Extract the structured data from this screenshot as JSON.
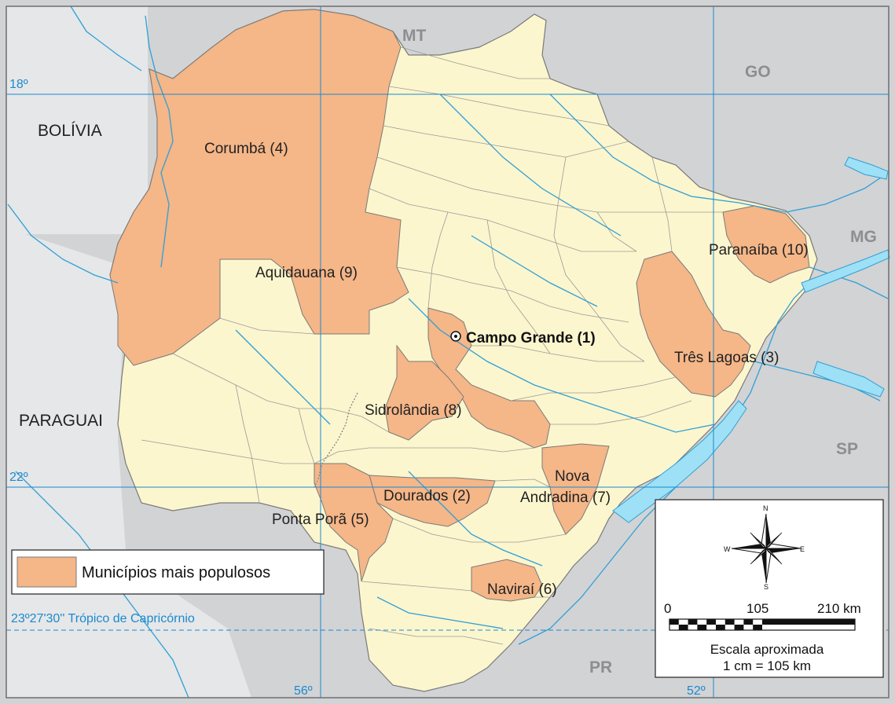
{
  "colors": {
    "neighbor": "#d2d3d5",
    "state": "#fcf6ce",
    "highlight": "#f5b688",
    "water": "#9ee0f5",
    "river": "#2f9fd6",
    "grid": "#1a8ad0",
    "border": "#7a7a7a",
    "neighbor_label": "#8d8e91"
  },
  "neighbors": {
    "mt": "MT",
    "go": "GO",
    "mg": "MG",
    "sp": "SP",
    "pr": "PR",
    "bolivia": "BOLÍVIA",
    "paraguai": "PARAGUAI"
  },
  "grid": {
    "lat_18": "18º",
    "lat_22": "22º",
    "lon_56": "56º",
    "lon_52": "52º",
    "tropic": "23º27'30'' Trópico de Capricórnio"
  },
  "capital": "Campo Grande (1)",
  "cities": {
    "dourados": "Dourados (2)",
    "tres_lagoas": "Três Lagoas (3)",
    "corumba": "Corumbá (4)",
    "ponta_pora": "Ponta Porã (5)",
    "navirai": "Naviraí (6)",
    "nova_line1": "Nova",
    "nova_line2": "Andradina (7)",
    "sidrolandia": "Sidrolândia (8)",
    "aquidauana": "Aquidauana (9)",
    "paranaiba": "Paranaíba (10)"
  },
  "legend": {
    "label": "Municípios mais populosos"
  },
  "compass": {
    "n": "N",
    "s": "S",
    "e": "E",
    "w": "W",
    "icon": "compass-rose-icon"
  },
  "scale": {
    "tick_0": "0",
    "tick_105": "105",
    "tick_210": "210 km",
    "title": "Escala aproximada",
    "ratio": "1 cm = 105 km"
  }
}
